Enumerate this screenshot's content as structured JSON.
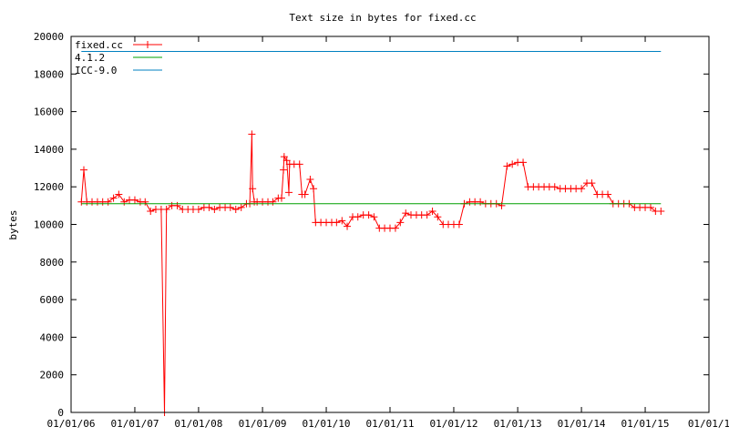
{
  "chart_data": {
    "type": "line",
    "title": "Text size in bytes for fixed.cc",
    "xlabel": "",
    "ylabel": "bytes",
    "ylim": [
      0,
      20000
    ],
    "xlim": [
      "2006-01-01",
      "2016-01-01"
    ],
    "y_ticks": [
      0,
      2000,
      4000,
      6000,
      8000,
      10000,
      12000,
      14000,
      16000,
      18000,
      20000
    ],
    "x_ticks": [
      {
        "date": "2006-01-01",
        "label": "01/01/06"
      },
      {
        "date": "2007-01-01",
        "label": "01/01/07"
      },
      {
        "date": "2008-01-01",
        "label": "01/01/08"
      },
      {
        "date": "2009-01-01",
        "label": "01/01/09"
      },
      {
        "date": "2010-01-01",
        "label": "01/01/10"
      },
      {
        "date": "2011-01-01",
        "label": "01/01/11"
      },
      {
        "date": "2012-01-01",
        "label": "01/01/12"
      },
      {
        "date": "2013-01-01",
        "label": "01/01/13"
      },
      {
        "date": "2014-01-01",
        "label": "01/01/14"
      },
      {
        "date": "2015-01-01",
        "label": "01/01/15"
      },
      {
        "date": "2016-01-01",
        "label": "01/01/1"
      }
    ],
    "legend_position": "top-left",
    "grid": false,
    "series": [
      {
        "name": "fixed.cc",
        "color": "#ff0000",
        "marker": "plus",
        "points": [
          [
            "2006-03-01",
            11200
          ],
          [
            "2006-03-15",
            12900
          ],
          [
            "2006-04-01",
            11200
          ],
          [
            "2006-05-01",
            11200
          ],
          [
            "2006-06-01",
            11200
          ],
          [
            "2006-07-01",
            11200
          ],
          [
            "2006-08-01",
            11200
          ],
          [
            "2006-09-01",
            11400
          ],
          [
            "2006-10-01",
            11600
          ],
          [
            "2006-11-01",
            11200
          ],
          [
            "2006-12-01",
            11300
          ],
          [
            "2007-01-01",
            11300
          ],
          [
            "2007-02-01",
            11200
          ],
          [
            "2007-03-01",
            11200
          ],
          [
            "2007-04-01",
            10700
          ],
          [
            "2007-05-01",
            10800
          ],
          [
            "2007-06-01",
            10800
          ],
          [
            "2007-06-20",
            0
          ],
          [
            "2007-07-01",
            10800
          ],
          [
            "2007-08-01",
            11000
          ],
          [
            "2007-09-01",
            11000
          ],
          [
            "2007-10-01",
            10800
          ],
          [
            "2007-11-01",
            10800
          ],
          [
            "2007-12-01",
            10800
          ],
          [
            "2008-01-01",
            10800
          ],
          [
            "2008-02-01",
            10900
          ],
          [
            "2008-03-01",
            10900
          ],
          [
            "2008-04-01",
            10800
          ],
          [
            "2008-05-01",
            10900
          ],
          [
            "2008-06-01",
            10900
          ],
          [
            "2008-07-01",
            10900
          ],
          [
            "2008-08-01",
            10800
          ],
          [
            "2008-09-01",
            10900
          ],
          [
            "2008-10-01",
            11100
          ],
          [
            "2008-10-20",
            11100
          ],
          [
            "2008-11-01",
            14800
          ],
          [
            "2008-11-05",
            11900
          ],
          [
            "2008-11-15",
            11200
          ],
          [
            "2008-12-01",
            11200
          ],
          [
            "2009-01-01",
            11200
          ],
          [
            "2009-02-01",
            11200
          ],
          [
            "2009-03-01",
            11200
          ],
          [
            "2009-04-01",
            11400
          ],
          [
            "2009-04-20",
            11400
          ],
          [
            "2009-05-01",
            12900
          ],
          [
            "2009-05-05",
            13600
          ],
          [
            "2009-05-20",
            13400
          ],
          [
            "2009-06-01",
            11700
          ],
          [
            "2009-06-05",
            13200
          ],
          [
            "2009-07-01",
            13200
          ],
          [
            "2009-08-01",
            13200
          ],
          [
            "2009-08-15",
            11600
          ],
          [
            "2009-09-01",
            11600
          ],
          [
            "2009-10-01",
            12400
          ],
          [
            "2009-10-20",
            11900
          ],
          [
            "2009-11-01",
            10100
          ],
          [
            "2009-12-01",
            10100
          ],
          [
            "2010-01-01",
            10100
          ],
          [
            "2010-02-01",
            10100
          ],
          [
            "2010-03-01",
            10100
          ],
          [
            "2010-04-01",
            10200
          ],
          [
            "2010-05-01",
            9900
          ],
          [
            "2010-06-01",
            10400
          ],
          [
            "2010-07-01",
            10400
          ],
          [
            "2010-08-01",
            10500
          ],
          [
            "2010-09-01",
            10500
          ],
          [
            "2010-10-01",
            10400
          ],
          [
            "2010-11-01",
            9800
          ],
          [
            "2010-12-01",
            9800
          ],
          [
            "2011-01-01",
            9800
          ],
          [
            "2011-02-01",
            9800
          ],
          [
            "2011-03-01",
            10100
          ],
          [
            "2011-04-01",
            10600
          ],
          [
            "2011-05-01",
            10500
          ],
          [
            "2011-06-01",
            10500
          ],
          [
            "2011-07-01",
            10500
          ],
          [
            "2011-08-01",
            10500
          ],
          [
            "2011-09-01",
            10700
          ],
          [
            "2011-10-01",
            10400
          ],
          [
            "2011-11-01",
            10000
          ],
          [
            "2011-12-01",
            10000
          ],
          [
            "2012-01-01",
            10000
          ],
          [
            "2012-02-01",
            10000
          ],
          [
            "2012-03-01",
            11100
          ],
          [
            "2012-04-01",
            11200
          ],
          [
            "2012-05-01",
            11200
          ],
          [
            "2012-06-01",
            11200
          ],
          [
            "2012-07-01",
            11100
          ],
          [
            "2012-08-01",
            11100
          ],
          [
            "2012-09-01",
            11100
          ],
          [
            "2012-10-01",
            11000
          ],
          [
            "2012-11-01",
            13100
          ],
          [
            "2012-12-01",
            13200
          ],
          [
            "2013-01-01",
            13300
          ],
          [
            "2013-02-01",
            13300
          ],
          [
            "2013-03-01",
            12000
          ],
          [
            "2013-04-01",
            12000
          ],
          [
            "2013-05-01",
            12000
          ],
          [
            "2013-06-01",
            12000
          ],
          [
            "2013-07-01",
            12000
          ],
          [
            "2013-08-01",
            12000
          ],
          [
            "2013-09-01",
            11900
          ],
          [
            "2013-10-01",
            11900
          ],
          [
            "2013-11-01",
            11900
          ],
          [
            "2013-12-01",
            11900
          ],
          [
            "2014-01-01",
            11900
          ],
          [
            "2014-02-01",
            12200
          ],
          [
            "2014-03-01",
            12200
          ],
          [
            "2014-04-01",
            11600
          ],
          [
            "2014-05-01",
            11600
          ],
          [
            "2014-06-01",
            11600
          ],
          [
            "2014-07-01",
            11100
          ],
          [
            "2014-08-01",
            11100
          ],
          [
            "2014-09-01",
            11100
          ],
          [
            "2014-10-01",
            11100
          ],
          [
            "2014-11-01",
            10900
          ],
          [
            "2014-12-01",
            10900
          ],
          [
            "2015-01-01",
            10900
          ],
          [
            "2015-02-01",
            10900
          ],
          [
            "2015-03-01",
            10700
          ],
          [
            "2015-04-01",
            10700
          ]
        ]
      },
      {
        "name": "4.1.2",
        "color": "#00a000",
        "marker": "none",
        "points": [
          [
            "2006-03-01",
            11100
          ],
          [
            "2015-04-01",
            11100
          ]
        ]
      },
      {
        "name": "ICC-9.0",
        "color": "#0080c0",
        "marker": "none",
        "points": [
          [
            "2006-03-01",
            19200
          ],
          [
            "2015-04-01",
            19200
          ]
        ]
      }
    ]
  }
}
